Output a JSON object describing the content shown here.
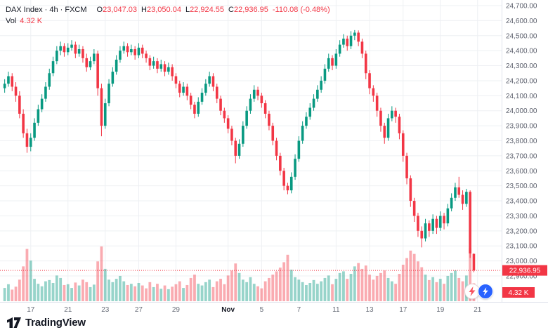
{
  "header": {
    "title": "DAX Index · 4h · FXCM",
    "ohlc": [
      {
        "label": "O",
        "value": "23,047.03"
      },
      {
        "label": "H",
        "value": "23,050.04"
      },
      {
        "label": "L",
        "value": "22,924.55"
      },
      {
        "label": "C",
        "value": "22,936.95"
      }
    ],
    "change": "-110.08 (-0.48%)",
    "vol_label": "Vol",
    "vol_value": "4.32 K"
  },
  "badges": {
    "price": "22,936.95",
    "volume": "4.32 K"
  },
  "footer": {
    "brand": "TradingView"
  },
  "icons": {
    "fab_left": "lightning-icon",
    "fab_right": "lightning-icon",
    "logo": "tradingview-logo-icon"
  },
  "colors": {
    "up": "#089981",
    "down": "#f23645",
    "vol_up": "rgba(8,153,129,0.42)",
    "vol_down": "rgba(242,54,69,0.42)",
    "grid": "#eef0f3",
    "axis_text": "#5a5e6b",
    "axis_line": "#e0e3eb",
    "accent_blue": "#2962ff"
  },
  "chart_data": {
    "type": "candlestick+volume",
    "title": "DAX Index 4h FXCM",
    "ylim": [
      22900,
      24700
    ],
    "y_ticks": [
      24700,
      24600,
      24500,
      24400,
      24300,
      24200,
      24100,
      24000,
      23900,
      23800,
      23700,
      23600,
      23500,
      23400,
      23300,
      23200,
      23100,
      23000,
      22900
    ],
    "x_labels": [
      {
        "text": "17",
        "i": 7
      },
      {
        "text": "21",
        "i": 17
      },
      {
        "text": "23",
        "i": 27
      },
      {
        "text": "27",
        "i": 36
      },
      {
        "text": "29",
        "i": 46
      },
      {
        "text": "Nov",
        "i": 60,
        "major": true
      },
      {
        "text": "5",
        "i": 69
      },
      {
        "text": "7",
        "i": 79
      },
      {
        "text": "11",
        "i": 89
      },
      {
        "text": "13",
        "i": 98
      },
      {
        "text": "17",
        "i": 107
      },
      {
        "text": "19",
        "i": 117
      },
      {
        "text": "21",
        "i": 127
      }
    ],
    "last_price": 22936.95,
    "last_volume": 4.32,
    "candles": [
      [
        24150,
        24210,
        24120,
        24180
      ],
      [
        24180,
        24260,
        24160,
        24230
      ],
      [
        24230,
        24250,
        24130,
        24160
      ],
      [
        24160,
        24190,
        24060,
        24100
      ],
      [
        24100,
        24130,
        23950,
        23980
      ],
      [
        23980,
        24010,
        23820,
        23850
      ],
      [
        23850,
        23880,
        23720,
        23760
      ],
      [
        23760,
        23850,
        23730,
        23820
      ],
      [
        23820,
        23950,
        23800,
        23920
      ],
      [
        23920,
        24040,
        23900,
        24010
      ],
      [
        24010,
        24110,
        23990,
        24080
      ],
      [
        24080,
        24190,
        24060,
        24160
      ],
      [
        24160,
        24280,
        24140,
        24250
      ],
      [
        24250,
        24360,
        24230,
        24330
      ],
      [
        24330,
        24430,
        24310,
        24400
      ],
      [
        24400,
        24460,
        24370,
        24430
      ],
      [
        24430,
        24450,
        24360,
        24390
      ],
      [
        24390,
        24450,
        24370,
        24420
      ],
      [
        24420,
        24470,
        24400,
        24440
      ],
      [
        24440,
        24460,
        24350,
        24380
      ],
      [
        24380,
        24440,
        24360,
        24410
      ],
      [
        24410,
        24430,
        24320,
        24350
      ],
      [
        24350,
        24380,
        24260,
        24290
      ],
      [
        24290,
        24360,
        24270,
        24330
      ],
      [
        24330,
        24410,
        24310,
        24380
      ],
      [
        24380,
        24400,
        24100,
        24150
      ],
      [
        24150,
        24180,
        23830,
        23900
      ],
      [
        23900,
        24080,
        23880,
        24050
      ],
      [
        24050,
        24210,
        24030,
        24180
      ],
      [
        24180,
        24290,
        24160,
        24260
      ],
      [
        24260,
        24370,
        24240,
        24340
      ],
      [
        24340,
        24430,
        24320,
        24400
      ],
      [
        24400,
        24460,
        24380,
        24430
      ],
      [
        24430,
        24450,
        24360,
        24390
      ],
      [
        24390,
        24440,
        24370,
        24410
      ],
      [
        24410,
        24430,
        24340,
        24370
      ],
      [
        24370,
        24450,
        24350,
        24420
      ],
      [
        24420,
        24440,
        24350,
        24380
      ],
      [
        24380,
        24400,
        24320,
        24350
      ],
      [
        24350,
        24370,
        24270,
        24300
      ],
      [
        24300,
        24360,
        24280,
        24330
      ],
      [
        24330,
        24350,
        24250,
        24280
      ],
      [
        24280,
        24340,
        24260,
        24310
      ],
      [
        24310,
        24330,
        24230,
        24260
      ],
      [
        24260,
        24320,
        24240,
        24290
      ],
      [
        24290,
        24310,
        24200,
        24230
      ],
      [
        24230,
        24250,
        24150,
        24180
      ],
      [
        24180,
        24200,
        24090,
        24120
      ],
      [
        24120,
        24190,
        24100,
        24160
      ],
      [
        24160,
        24180,
        24070,
        24100
      ],
      [
        24100,
        24120,
        24010,
        24040
      ],
      [
        24040,
        24060,
        23950,
        23980
      ],
      [
        23980,
        24090,
        23960,
        24060
      ],
      [
        24060,
        24150,
        24040,
        24120
      ],
      [
        24120,
        24210,
        24100,
        24180
      ],
      [
        24180,
        24260,
        24160,
        24230
      ],
      [
        24230,
        24250,
        24130,
        24160
      ],
      [
        24160,
        24180,
        24050,
        24080
      ],
      [
        24080,
        24100,
        23970,
        24000
      ],
      [
        24000,
        24020,
        23920,
        23950
      ],
      [
        23950,
        23970,
        23850,
        23880
      ],
      [
        23880,
        23900,
        23770,
        23800
      ],
      [
        23800,
        23820,
        23650,
        23700
      ],
      [
        23700,
        23810,
        23680,
        23780
      ],
      [
        23780,
        23930,
        23760,
        23900
      ],
      [
        23900,
        24030,
        23880,
        24000
      ],
      [
        24000,
        24110,
        23980,
        24080
      ],
      [
        24080,
        24170,
        24060,
        24140
      ],
      [
        24140,
        24160,
        24070,
        24100
      ],
      [
        24100,
        24120,
        24020,
        24050
      ],
      [
        24050,
        24070,
        23950,
        23980
      ],
      [
        23980,
        24000,
        23870,
        23900
      ],
      [
        23900,
        23920,
        23770,
        23800
      ],
      [
        23800,
        23820,
        23670,
        23700
      ],
      [
        23700,
        23720,
        23570,
        23600
      ],
      [
        23600,
        23620,
        23470,
        23500
      ],
      [
        23500,
        23520,
        23444,
        23470
      ],
      [
        23470,
        23590,
        23450,
        23560
      ],
      [
        23560,
        23710,
        23540,
        23680
      ],
      [
        23680,
        23830,
        23660,
        23800
      ],
      [
        23800,
        23930,
        23780,
        23900
      ],
      [
        23900,
        23990,
        23880,
        23960
      ],
      [
        23960,
        24050,
        23940,
        24020
      ],
      [
        24020,
        24110,
        24000,
        24080
      ],
      [
        24080,
        24170,
        24060,
        24140
      ],
      [
        24140,
        24230,
        24120,
        24200
      ],
      [
        24200,
        24310,
        24180,
        24280
      ],
      [
        24280,
        24380,
        24260,
        24350
      ],
      [
        24350,
        24370,
        24270,
        24300
      ],
      [
        24300,
        24410,
        24280,
        24380
      ],
      [
        24380,
        24470,
        24360,
        24440
      ],
      [
        24440,
        24510,
        24420,
        24480
      ],
      [
        24480,
        24500,
        24400,
        24430
      ],
      [
        24430,
        24530,
        24410,
        24500
      ],
      [
        24500,
        24537,
        24470,
        24520
      ],
      [
        24520,
        24535,
        24430,
        24460
      ],
      [
        24460,
        24480,
        24350,
        24380
      ],
      [
        24380,
        24400,
        24210,
        24250
      ],
      [
        24250,
        24270,
        24110,
        24150
      ],
      [
        24150,
        24170,
        24060,
        24100
      ],
      [
        24100,
        24120,
        23960,
        24000
      ],
      [
        24000,
        24020,
        23860,
        23900
      ],
      [
        23900,
        23920,
        23780,
        23820
      ],
      [
        23820,
        23980,
        23800,
        23950
      ],
      [
        23950,
        24030,
        23930,
        24000
      ],
      [
        24000,
        24020,
        23920,
        23960
      ],
      [
        23960,
        23980,
        23810,
        23850
      ],
      [
        23850,
        23870,
        23660,
        23700
      ],
      [
        23700,
        23720,
        23510,
        23550
      ],
      [
        23550,
        23570,
        23360,
        23400
      ],
      [
        23400,
        23420,
        23260,
        23300
      ],
      [
        23300,
        23320,
        23160,
        23200
      ],
      [
        23200,
        23230,
        23090,
        23150
      ],
      [
        23150,
        23280,
        23130,
        23250
      ],
      [
        23250,
        23270,
        23160,
        23200
      ],
      [
        23200,
        23310,
        23180,
        23280
      ],
      [
        23280,
        23300,
        23180,
        23220
      ],
      [
        23220,
        23330,
        23200,
        23300
      ],
      [
        23300,
        23320,
        23210,
        23250
      ],
      [
        23250,
        23380,
        23230,
        23350
      ],
      [
        23350,
        23450,
        23330,
        23420
      ],
      [
        23420,
        23520,
        23400,
        23490
      ],
      [
        23490,
        23560,
        23420,
        23440
      ],
      [
        23440,
        23470,
        23340,
        23380
      ],
      [
        23380,
        23480,
        23360,
        23460
      ],
      [
        23460,
        23470,
        23020,
        23050
      ],
      [
        23047.03,
        23050.04,
        22924.55,
        22936.95
      ]
    ],
    "volumes": [
      3.2,
      4.1,
      2.8,
      3.5,
      5.2,
      8.4,
      12.6,
      9.8,
      5.4,
      4.2,
      3.6,
      4.8,
      5.1,
      4.4,
      6.2,
      5.6,
      3.9,
      4.1,
      3.2,
      4.5,
      3.8,
      5.2,
      4.6,
      3.4,
      4.0,
      9.6,
      13.2,
      7.8,
      5.2,
      4.6,
      5.4,
      6.1,
      4.8,
      3.9,
      4.2,
      3.6,
      4.4,
      3.8,
      3.1,
      4.6,
      3.4,
      4.2,
      3.0,
      3.8,
      2.9,
      3.5,
      4.1,
      4.8,
      3.2,
      3.9,
      5.6,
      6.4,
      4.2,
      3.8,
      4.6,
      5.2,
      3.4,
      4.8,
      5.4,
      4.1,
      6.2,
      7.4,
      9.1,
      6.8,
      5.2,
      4.6,
      5.8,
      4.2,
      3.6,
      3.1,
      4.8,
      5.6,
      6.4,
      7.2,
      8.1,
      9.4,
      11.2,
      7.6,
      5.8,
      5.2,
      4.6,
      3.9,
      4.4,
      5.1,
      4.2,
      4.8,
      5.6,
      6.2,
      4.1,
      5.4,
      6.8,
      7.2,
      5.4,
      6.6,
      8.4,
      9.2,
      7.8,
      8.6,
      6.4,
      5.2,
      6.1,
      6.8,
      7.4,
      5.6,
      4.8,
      4.2,
      6.6,
      8.8,
      10.4,
      12.2,
      11.4,
      9.6,
      8.2,
      6.4,
      5.1,
      5.8,
      4.6,
      5.4,
      4.2,
      6.1,
      6.8,
      7.4,
      5.6,
      4.8,
      6.2,
      12.8,
      4.32
    ]
  }
}
